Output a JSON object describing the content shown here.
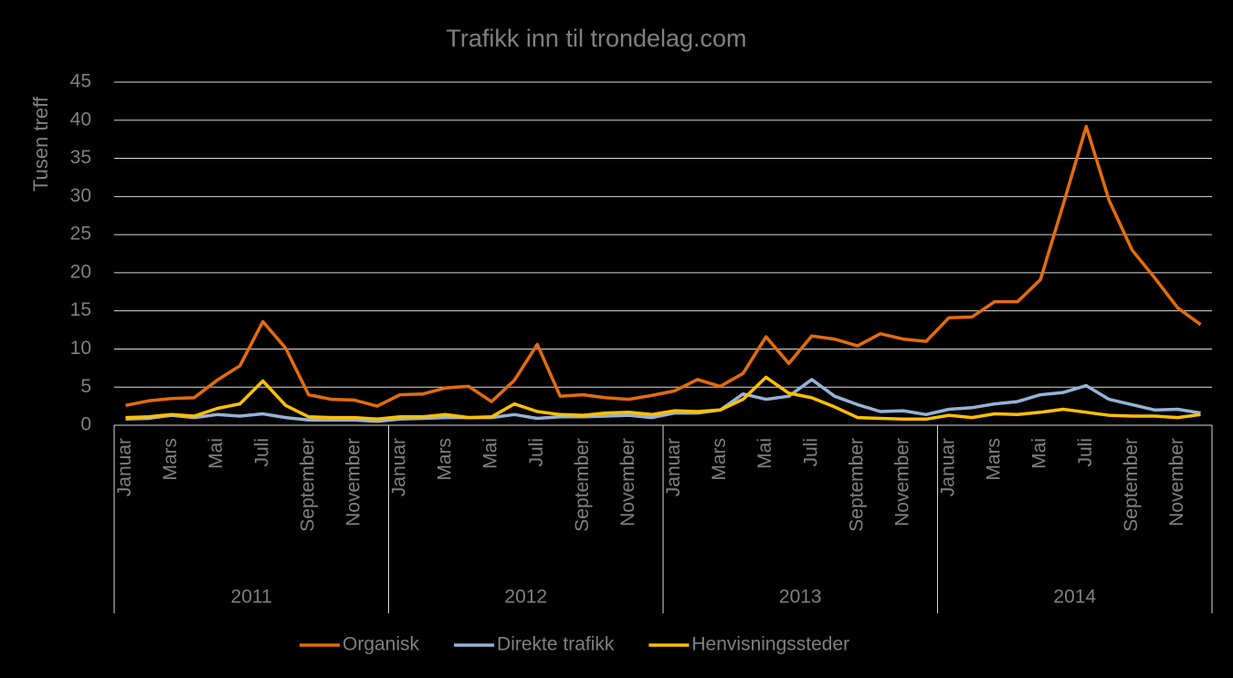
{
  "chart_data": {
    "type": "line",
    "title": "Trafikk inn til trondelag.com",
    "y_label": "Tusen treff",
    "categories": [
      "Januar",
      null,
      "Mars",
      null,
      "Mai",
      null,
      "Juli",
      null,
      "September",
      null,
      "November",
      null,
      "Januar",
      null,
      "Mars",
      null,
      "Mai",
      null,
      "Juli",
      null,
      "September",
      null,
      "November",
      null,
      "Januar",
      null,
      "Mars",
      null,
      "Mai",
      null,
      "Juli",
      null,
      "September",
      null,
      "November",
      null,
      "Januar",
      null,
      "Mars",
      null,
      "Mai",
      null,
      "Juli",
      null,
      "September",
      null,
      "November",
      null
    ],
    "category_groups": [
      "2011",
      "2012",
      "2013",
      "2014"
    ],
    "series": [
      {
        "name": "Organisk",
        "color": "#e46c0a",
        "values": [
          2.6,
          3.2,
          3.5,
          3.6,
          5.9,
          7.8,
          13.6,
          10.1,
          4.0,
          3.4,
          3.3,
          2.5,
          4.0,
          4.1,
          4.9,
          5.1,
          3.1,
          5.9,
          10.6,
          3.8,
          4.0,
          3.6,
          3.4,
          3.9,
          4.5,
          6.0,
          5.1,
          6.8,
          11.6,
          8.1,
          11.7,
          11.3,
          10.4,
          12.0,
          11.3,
          11.0,
          14.1,
          14.2,
          16.2,
          16.2,
          19.1,
          29.0,
          39.2,
          29.5,
          23.0,
          19.3,
          15.4,
          13.2
        ]
      },
      {
        "name": "Direkte trafikk",
        "color": "#95b3d7",
        "values": [
          0.8,
          0.9,
          1.3,
          1.0,
          1.4,
          1.2,
          1.5,
          1.0,
          0.7,
          0.7,
          0.7,
          0.5,
          0.8,
          0.9,
          1.0,
          1.0,
          1.0,
          1.4,
          0.9,
          1.1,
          1.1,
          1.2,
          1.3,
          1.0,
          1.6,
          1.6,
          2.0,
          4.1,
          3.4,
          3.8,
          6.0,
          3.8,
          2.7,
          1.8,
          1.9,
          1.4,
          2.1,
          2.3,
          2.8,
          3.1,
          4.0,
          4.3,
          5.2,
          3.4,
          2.7,
          2.0,
          2.1,
          1.6
        ]
      },
      {
        "name": "Henvisningssteder",
        "color": "#ffc000",
        "values": [
          1.0,
          1.1,
          1.4,
          1.2,
          2.2,
          2.8,
          5.8,
          2.6,
          1.1,
          1.0,
          1.0,
          0.8,
          1.1,
          1.1,
          1.4,
          1.0,
          1.1,
          2.8,
          1.8,
          1.4,
          1.3,
          1.6,
          1.7,
          1.4,
          1.9,
          1.8,
          2.0,
          3.4,
          6.3,
          4.2,
          3.6,
          2.4,
          1.0,
          0.9,
          0.8,
          0.8,
          1.3,
          1.0,
          1.5,
          1.4,
          1.7,
          2.1,
          1.7,
          1.3,
          1.2,
          1.2,
          1.0,
          1.4
        ]
      }
    ],
    "ylim": [
      0,
      45
    ],
    "yticks": [
      0,
      5,
      10,
      15,
      20,
      25,
      30,
      35,
      40,
      45
    ],
    "grid": true,
    "legend": "bottom"
  }
}
